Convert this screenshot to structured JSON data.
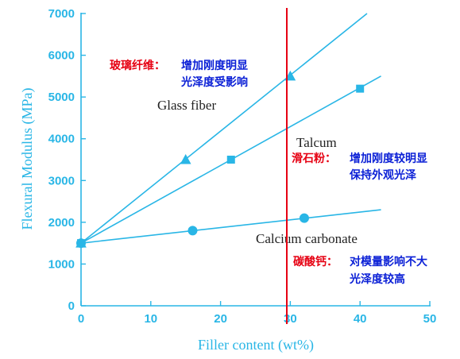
{
  "chart_data": {
    "type": "line",
    "xlabel": "Filler content (wt%)",
    "ylabel": "Flexural Modulus (MPa)",
    "xlim": [
      0,
      50
    ],
    "ylim": [
      0,
      7000
    ],
    "xticks": [
      0,
      10,
      20,
      30,
      40,
      50
    ],
    "yticks": [
      0,
      1000,
      2000,
      3000,
      4000,
      5000,
      6000,
      7000
    ],
    "series": [
      {
        "name": "Glass fiber",
        "marker": "triangle",
        "points": [
          [
            0,
            1500
          ],
          [
            15,
            3500
          ],
          [
            30,
            5500
          ]
        ],
        "line": [
          [
            0,
            1500
          ],
          [
            41,
            7000
          ]
        ]
      },
      {
        "name": "Talcum",
        "marker": "square",
        "points": [
          [
            0,
            1500
          ],
          [
            21.5,
            3500
          ],
          [
            40,
            5200
          ]
        ],
        "line": [
          [
            0,
            1500
          ],
          [
            43,
            5500
          ]
        ]
      },
      {
        "name": "Calcium carbonate",
        "marker": "circle",
        "points": [
          [
            0,
            1500
          ],
          [
            16,
            1800
          ],
          [
            32,
            2100
          ]
        ],
        "line": [
          [
            0,
            1500
          ],
          [
            43,
            2300
          ]
        ]
      }
    ],
    "reference_line": {
      "x": 29.5,
      "color": "#e60012"
    },
    "annotations": [
      {
        "label": "玻璃纤维：",
        "lines": [
          "增加刚度明显",
          "光泽度受影响"
        ]
      },
      {
        "label": "滑石粉：",
        "lines": [
          "增加刚度较明显",
          "保持外观光泽"
        ]
      },
      {
        "label": "碳酸钙：",
        "lines": [
          "对模量影响不大",
          "光泽度较高"
        ]
      }
    ],
    "colors": {
      "axis": "#29b6e6",
      "series": "#29b6e6",
      "annotation_label": "#e60012",
      "annotation_text": "#0a1fd6"
    }
  }
}
